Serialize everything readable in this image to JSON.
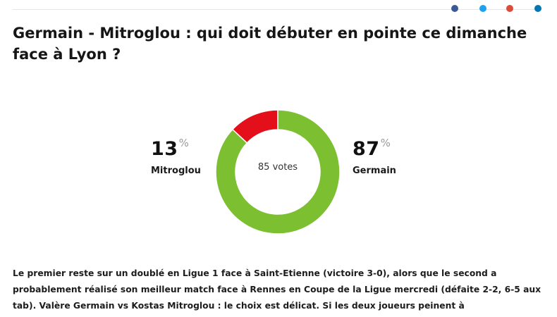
{
  "article": {
    "title": "Germain - Mitroglou : qui doit débuter en pointe ce dimanche face à Lyon ?",
    "body": "Le premier reste sur un doublé en Ligue 1 face à Saint-Etienne (victoire 3-0), alors que le second a probablement réalisé son meilleur match face à Rennes en Coupe de la Ligue mercredi (défaite 2-2, 6-5 aux tab). Valère Germain vs Kostas Mitroglou : le choix est délicat. Si les deux joueurs peinent à"
  },
  "share": {
    "colors": [
      "#3b5998",
      "#1da1f2",
      "#dd4b39",
      "#0077b5"
    ],
    "icons": [
      "facebook-icon",
      "twitter-icon",
      "google-plus-icon",
      "linkedin-icon"
    ]
  },
  "poll": {
    "votes_label": "85 votes",
    "percent_sign": "%",
    "options": [
      {
        "name": "Mitroglou",
        "percent": "13",
        "value": 13,
        "color": "#e3101c"
      },
      {
        "name": "Germain",
        "percent": "87",
        "value": 87,
        "color": "#7cc031"
      }
    ]
  }
}
